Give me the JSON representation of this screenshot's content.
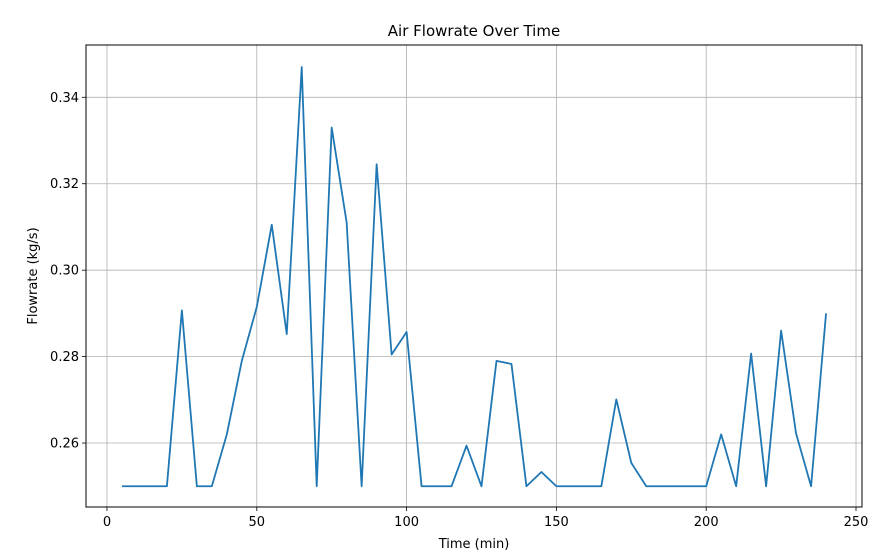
{
  "chart_data": {
    "type": "line",
    "title": "Air Flowrate Over Time",
    "xlabel": "Time (min)",
    "ylabel": "Flowrate (kg/s)",
    "xlim": [
      -7,
      252
    ],
    "ylim": [
      0.2452,
      0.3521
    ],
    "xticks": [
      0,
      50,
      100,
      150,
      200,
      250
    ],
    "yticks": [
      0.26,
      0.28,
      0.3,
      0.32,
      0.34
    ],
    "ytick_labels": [
      "0.26",
      "0.28",
      "0.30",
      "0.32",
      "0.34"
    ],
    "grid": true,
    "line_color": "#1f77b4",
    "x": [
      5,
      10,
      15,
      20,
      25,
      30,
      35,
      40,
      45,
      50,
      55,
      60,
      65,
      70,
      75,
      80,
      85,
      90,
      95,
      100,
      105,
      110,
      115,
      120,
      125,
      130,
      135,
      140,
      145,
      150,
      155,
      160,
      165,
      170,
      175,
      180,
      185,
      190,
      195,
      200,
      205,
      210,
      215,
      220,
      225,
      230,
      235,
      240
    ],
    "y": [
      0.25,
      0.25,
      0.25,
      0.25,
      0.2907,
      0.25,
      0.25,
      0.262,
      0.279,
      0.2915,
      0.3105,
      0.2852,
      0.347,
      0.25,
      0.333,
      0.311,
      0.25,
      0.3245,
      0.2805,
      0.2857,
      0.25,
      0.25,
      0.25,
      0.2594,
      0.25,
      0.279,
      0.2783,
      0.25,
      0.2533,
      0.25,
      0.25,
      0.25,
      0.25,
      0.2701,
      0.2554,
      0.25,
      0.25,
      0.25,
      0.25,
      0.25,
      0.262,
      0.25,
      0.2807,
      0.25,
      0.286,
      0.2622,
      0.25,
      0.29
    ]
  }
}
